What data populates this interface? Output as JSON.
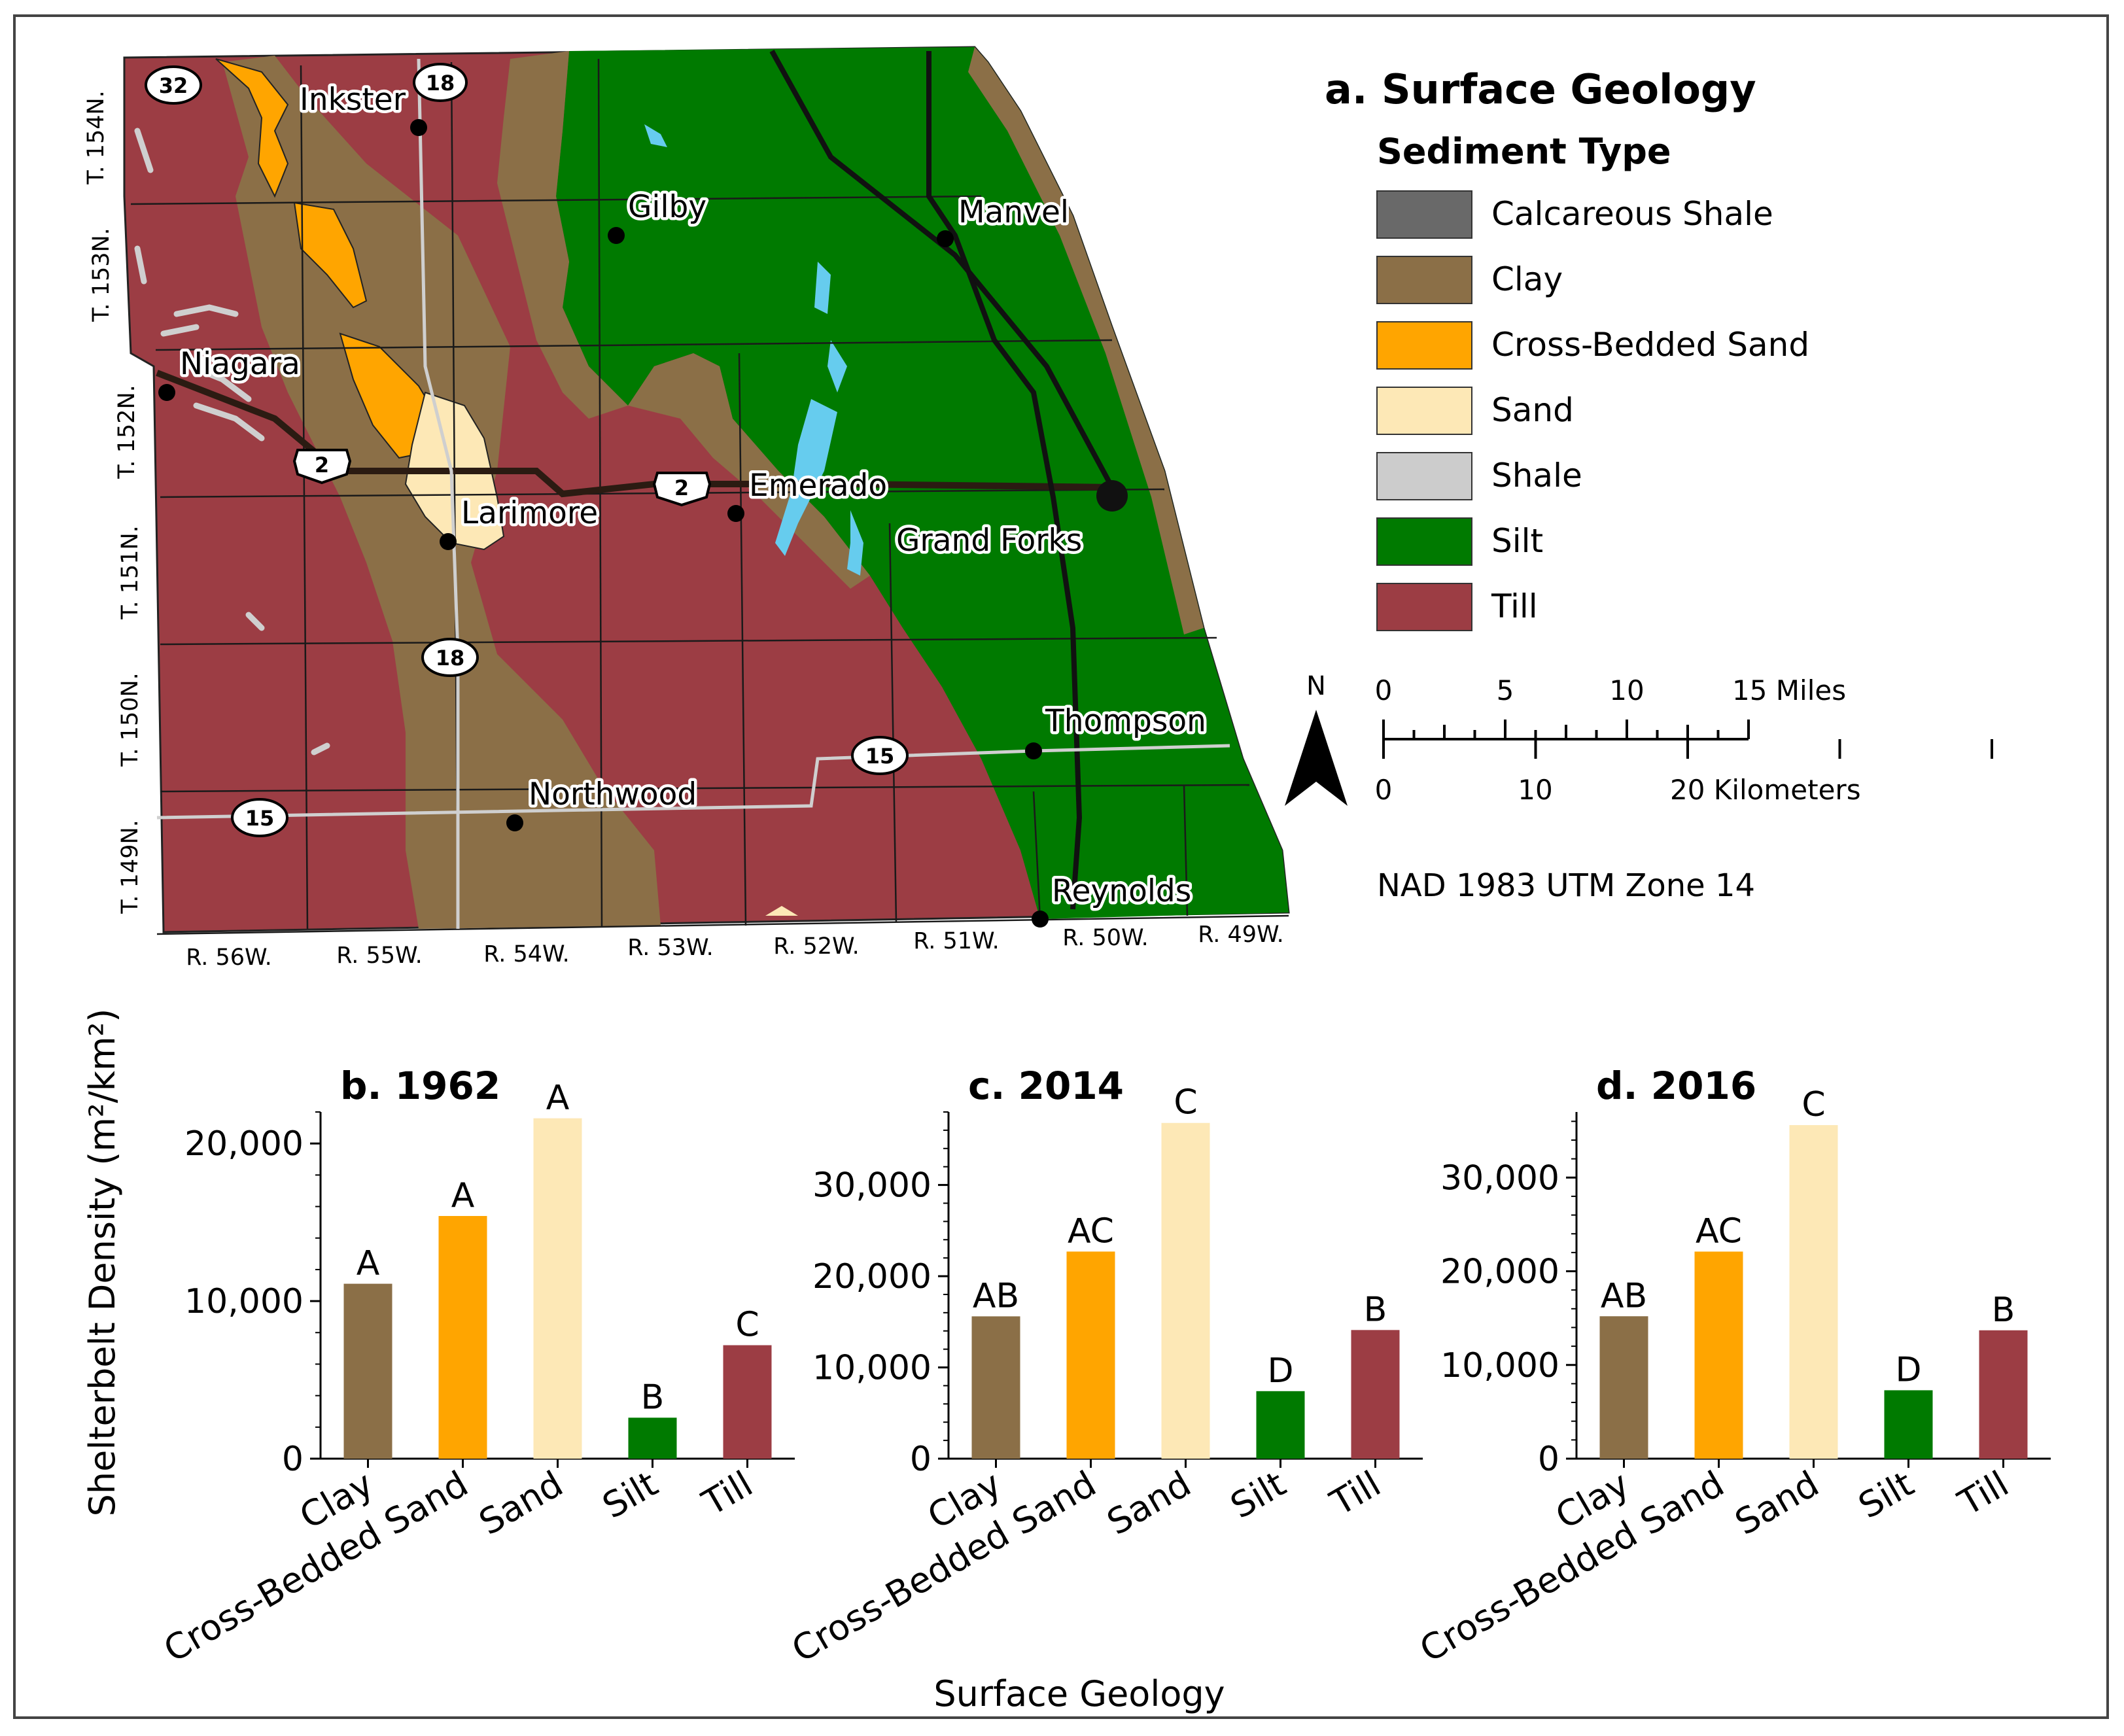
{
  "map": {
    "title": "a. Surface Geology",
    "legend_title": "Sediment Type",
    "legend": [
      {
        "label": "Calcareous Shale",
        "color": "#696969"
      },
      {
        "label": "Clay",
        "color": "#8b6f47"
      },
      {
        "label": "Cross-Bedded Sand",
        "color": "#ffa500"
      },
      {
        "label": "Sand",
        "color": "#fde8b6"
      },
      {
        "label": "Shale",
        "color": "#cccccc"
      },
      {
        "label": "Silt",
        "color": "#007a00"
      },
      {
        "label": "Till",
        "color": "#9c3d44"
      }
    ],
    "north_label": "N",
    "scale_miles": {
      "ticks": [
        "0",
        "5",
        "10",
        "15 Miles"
      ]
    },
    "scale_km": {
      "ticks": [
        "0",
        "10",
        "20 Kilometers"
      ]
    },
    "projection": "NAD 1983 UTM Zone 14",
    "towns": [
      "Inkster",
      "Gilby",
      "Manvel",
      "Niagara",
      "Emerado",
      "Larimore",
      "Grand Forks",
      "Thompson",
      "Northwood",
      "Reynolds"
    ],
    "townships": [
      "T. 154N.",
      "T. 153N.",
      "T. 152N.",
      "T. 151N.",
      "T. 150N.",
      "T. 149N."
    ],
    "ranges": [
      "R. 56W.",
      "R. 55W.",
      "R. 54W.",
      "R. 53W.",
      "R. 52W.",
      "R. 51W.",
      "R. 50W.",
      "R. 49W."
    ],
    "shields": {
      "r32": "32",
      "r18a": "18",
      "r18b": "18",
      "us2a": "2",
      "us2b": "2",
      "r15a": "15",
      "r15b": "15"
    }
  },
  "chart_data": [
    {
      "type": "bar",
      "title": "b. 1962",
      "categories": [
        "Clay",
        "Cross-Bedded Sand",
        "Sand",
        "Silt",
        "Till"
      ],
      "values": [
        11100,
        15400,
        21600,
        2600,
        7200
      ],
      "letters": [
        "A",
        "A",
        "A",
        "B",
        "C"
      ],
      "colors": [
        "#8b6f47",
        "#ffa500",
        "#fde8b6",
        "#007a00",
        "#9c3d44"
      ],
      "ylim": [
        0,
        22000
      ],
      "yticks": [
        0,
        10000,
        20000
      ],
      "ytick_labels": [
        "0",
        "10,000",
        "20,000"
      ]
    },
    {
      "type": "bar",
      "title": "c. 2014",
      "categories": [
        "Clay",
        "Cross-Bedded Sand",
        "Sand",
        "Silt",
        "Till"
      ],
      "values": [
        15600,
        22700,
        36800,
        7400,
        14100
      ],
      "letters": [
        "AB",
        "AC",
        "C",
        "D",
        "B"
      ],
      "colors": [
        "#8b6f47",
        "#ffa500",
        "#fde8b6",
        "#007a00",
        "#9c3d44"
      ],
      "ylim": [
        0,
        38000
      ],
      "yticks": [
        0,
        10000,
        20000,
        30000
      ],
      "ytick_labels": [
        "0",
        "10,000",
        "20,000",
        "30,000"
      ]
    },
    {
      "type": "bar",
      "title": "d. 2016",
      "categories": [
        "Clay",
        "Cross-Bedded Sand",
        "Sand",
        "Silt",
        "Till"
      ],
      "values": [
        15200,
        22100,
        35600,
        7300,
        13700
      ],
      "letters": [
        "AB",
        "AC",
        "C",
        "D",
        "B"
      ],
      "colors": [
        "#8b6f47",
        "#ffa500",
        "#fde8b6",
        "#007a00",
        "#9c3d44"
      ],
      "ylim": [
        0,
        37000
      ],
      "yticks": [
        0,
        10000,
        20000,
        30000
      ],
      "ytick_labels": [
        "0",
        "10,000",
        "20,000",
        "30,000"
      ]
    }
  ],
  "axes": {
    "ylabel": "Shelterbelt Density (m²/km²)",
    "xlabel": "Surface Geology"
  }
}
